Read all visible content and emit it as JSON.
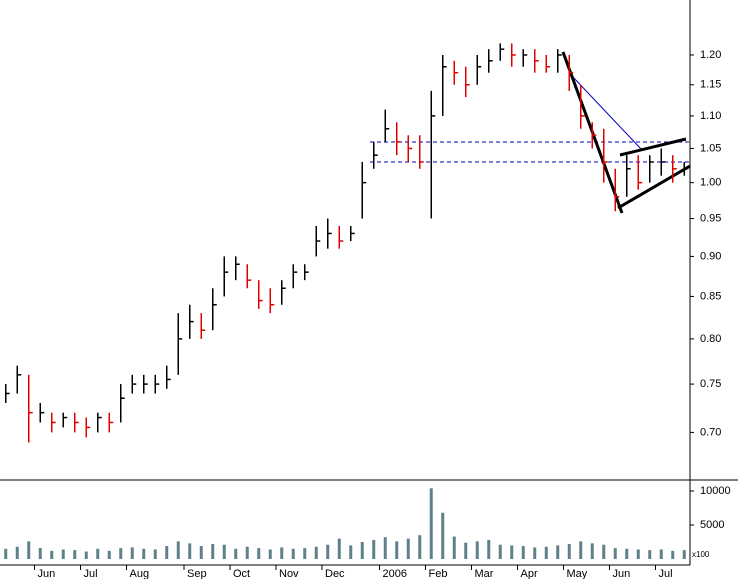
{
  "chart_data": [
    {
      "type": "ohlc",
      "categories": [
        null,
        null,
        null,
        "Jun",
        null,
        null,
        null,
        "Jul",
        null,
        null,
        null,
        "Aug",
        null,
        null,
        null,
        null,
        "Sep",
        null,
        null,
        null,
        "Oct",
        null,
        null,
        null,
        "Nov",
        null,
        null,
        null,
        "Dec",
        null,
        null,
        null,
        null,
        "2006",
        null,
        null,
        null,
        "Feb",
        null,
        null,
        null,
        "Mar",
        null,
        null,
        null,
        "Apr",
        null,
        null,
        null,
        "May",
        null,
        null,
        null,
        "Jun",
        null,
        null,
        null,
        "Jul",
        null,
        null
      ],
      "series": [
        {
          "name": "high",
          "values": [
            0.75,
            0.77,
            0.76,
            0.73,
            0.72,
            0.72,
            0.72,
            0.715,
            0.72,
            0.72,
            0.75,
            0.76,
            0.76,
            0.76,
            0.77,
            0.83,
            0.84,
            0.83,
            0.86,
            0.9,
            0.9,
            0.89,
            0.87,
            0.86,
            0.87,
            0.89,
            0.89,
            0.94,
            0.95,
            0.94,
            0.94,
            1.03,
            1.06,
            1.11,
            1.09,
            1.07,
            1.07,
            1.14,
            1.2,
            1.19,
            1.18,
            1.2,
            1.21,
            1.22,
            1.22,
            1.21,
            1.21,
            1.2,
            1.21,
            1.2,
            1.15,
            1.09,
            1.08,
            1.02,
            1.04,
            1.04,
            1.04,
            1.05,
            1.04,
            1.03
          ]
        },
        {
          "name": "low",
          "values": [
            0.73,
            0.74,
            0.69,
            0.71,
            0.7,
            0.705,
            0.7,
            0.695,
            0.7,
            0.7,
            0.71,
            0.74,
            0.74,
            0.74,
            0.745,
            0.76,
            0.8,
            0.8,
            0.81,
            0.85,
            0.87,
            0.86,
            0.835,
            0.83,
            0.84,
            0.86,
            0.87,
            0.9,
            0.91,
            0.91,
            0.92,
            0.95,
            1.02,
            1.06,
            1.04,
            1.03,
            1.02,
            0.95,
            1.1,
            1.15,
            1.13,
            1.15,
            1.17,
            1.19,
            1.18,
            1.18,
            1.17,
            1.17,
            1.17,
            1.14,
            1.08,
            1.05,
            1.0,
            0.96,
            0.98,
            0.99,
            1.0,
            1.01,
            1.0,
            1.01
          ]
        },
        {
          "name": "close",
          "values": [
            0.74,
            0.76,
            0.72,
            0.72,
            0.71,
            0.715,
            0.71,
            0.705,
            0.715,
            0.71,
            0.735,
            0.75,
            0.75,
            0.75,
            0.755,
            0.8,
            0.82,
            0.81,
            0.84,
            0.88,
            0.89,
            0.87,
            0.845,
            0.84,
            0.86,
            0.88,
            0.88,
            0.92,
            0.93,
            0.92,
            0.93,
            1.0,
            1.04,
            1.08,
            1.06,
            1.05,
            1.03,
            1.1,
            1.18,
            1.17,
            1.15,
            1.18,
            1.19,
            1.21,
            1.2,
            1.2,
            1.19,
            1.18,
            1.2,
            1.17,
            1.1,
            1.07,
            1.03,
            0.98,
            1.02,
            1.0,
            1.03,
            1.03,
            1.02,
            1.02
          ]
        }
      ],
      "up_color": "#000000",
      "down_color": "#e00000",
      "log_scale": true,
      "ylim": [
        0.654,
        1.298
      ],
      "yticks": [
        {
          "value": 0.7,
          "label": "0.70"
        },
        {
          "value": 0.75,
          "label": "0.75"
        },
        {
          "value": 0.8,
          "label": "0.80"
        },
        {
          "value": 0.85,
          "label": "0.85"
        },
        {
          "value": 0.9,
          "label": "0.90"
        },
        {
          "value": 0.95,
          "label": "0.95"
        },
        {
          "value": 1.0,
          "label": "1.00"
        },
        {
          "value": 1.05,
          "label": "1.05"
        },
        {
          "value": 1.1,
          "label": "1.10"
        },
        {
          "value": 1.15,
          "label": "1.15"
        },
        {
          "value": 1.2,
          "label": "1.20"
        }
      ]
    },
    {
      "type": "bar",
      "color": "#5f8088",
      "values": [
        1500,
        1800,
        2600,
        1600,
        1200,
        1400,
        1300,
        1100,
        1500,
        1200,
        1600,
        1700,
        1500,
        1400,
        1900,
        2600,
        2300,
        1900,
        2200,
        2100,
        1500,
        1800,
        1600,
        1400,
        1700,
        1500,
        1600,
        1800,
        2100,
        3000,
        2000,
        2500,
        2800,
        3200,
        2600,
        3000,
        3500,
        10400,
        6800,
        3300,
        2400,
        2600,
        2800,
        2100,
        2000,
        1900,
        1700,
        1800,
        2000,
        2200,
        2600,
        2300,
        2100,
        1600,
        1500,
        1400,
        1300,
        1400,
        1200,
        1300
      ],
      "ylim": [
        0,
        11470
      ],
      "yticks": [
        5000,
        10000
      ],
      "unit_label": "x100"
    }
  ]
}
